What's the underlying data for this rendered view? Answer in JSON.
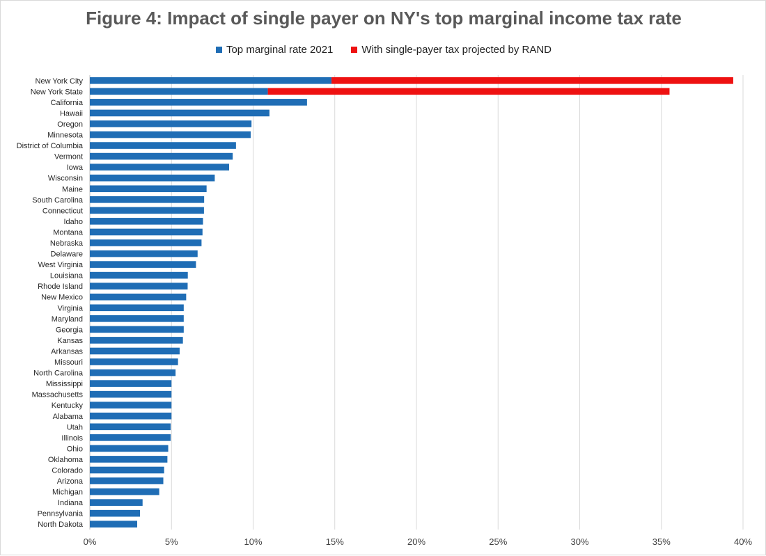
{
  "chart_data": {
    "type": "bar",
    "orientation": "horizontal",
    "stacked": true,
    "title": "Figure 4: Impact of single payer on NY's top marginal income tax rate",
    "xlabel": "",
    "ylabel": "",
    "xlim": [
      0,
      40
    ],
    "x_ticks": [
      "0%",
      "5%",
      "10%",
      "15%",
      "20%",
      "25%",
      "30%",
      "35%",
      "40%"
    ],
    "grid": true,
    "legend_position": "top",
    "categories": [
      "New York City",
      "New York State",
      "California",
      "Hawaii",
      "Oregon",
      "Minnesota",
      "District of Columbia",
      "Vermont",
      "Iowa",
      "Wisconsin",
      "Maine",
      "South Carolina",
      "Connecticut",
      "Idaho",
      "Montana",
      "Nebraska",
      "Delaware",
      "West Virginia",
      "Louisiana",
      "Rhode Island",
      "New Mexico",
      "Virginia",
      "Maryland",
      "Georgia",
      "Kansas",
      "Arkansas",
      "Missouri",
      "North Carolina",
      "Mississippi",
      "Massachusetts",
      "Kentucky",
      "Alabama",
      "Utah",
      "Illinois",
      "Ohio",
      "Oklahoma",
      "Colorado",
      "Arizona",
      "Michigan",
      "Indiana",
      "Pennsylvania",
      "North Dakota"
    ],
    "series": [
      {
        "name": "Top marginal rate 2021",
        "color": "#1f6db5",
        "values": [
          14.8,
          10.9,
          13.3,
          11.0,
          9.9,
          9.85,
          8.95,
          8.75,
          8.53,
          7.65,
          7.15,
          7.0,
          6.99,
          6.93,
          6.9,
          6.84,
          6.6,
          6.5,
          6.0,
          5.99,
          5.9,
          5.75,
          5.75,
          5.75,
          5.7,
          5.5,
          5.4,
          5.25,
          5.0,
          5.0,
          5.0,
          5.0,
          4.95,
          4.95,
          4.8,
          4.75,
          4.55,
          4.5,
          4.25,
          3.23,
          3.07,
          2.9
        ]
      },
      {
        "name": "With single-payer tax projected by RAND",
        "color": "#ee1111",
        "values": [
          24.6,
          24.6,
          0,
          0,
          0,
          0,
          0,
          0,
          0,
          0,
          0,
          0,
          0,
          0,
          0,
          0,
          0,
          0,
          0,
          0,
          0,
          0,
          0,
          0,
          0,
          0,
          0,
          0,
          0,
          0,
          0,
          0,
          0,
          0,
          0,
          0,
          0,
          0,
          0,
          0,
          0,
          0
        ]
      }
    ]
  }
}
